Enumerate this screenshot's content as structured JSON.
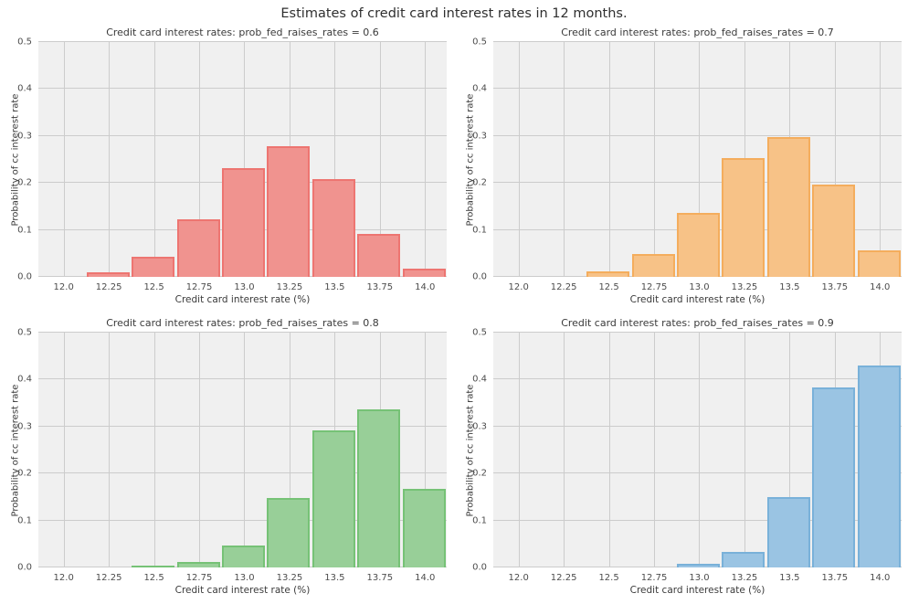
{
  "figure": {
    "title": "Estimates of credit card interest rates in 12 months.",
    "background": "#ffffff"
  },
  "style": {
    "axes_background": "#f0f0f0",
    "grid_color": "#cccccc",
    "title_color": "#2f2f2f",
    "tick_color": "#4d4d4d"
  },
  "chart_data": {
    "type": "bar",
    "subtype": "histogram-grid-2x2",
    "suptitle": "Estimates of credit card interest rates in 12 months.",
    "xlim": [
      11.86,
      14.12
    ],
    "ylim": [
      0,
      0.5
    ],
    "xtick_values": [
      12.0,
      12.25,
      12.5,
      12.75,
      13.0,
      13.25,
      13.5,
      13.75,
      14.0
    ],
    "xtick_labels": [
      "12.0",
      "12.25",
      "12.5",
      "12.75",
      "13.0",
      "13.25",
      "13.5",
      "13.75",
      "14.0"
    ],
    "ytick_values": [
      0.0,
      0.1,
      0.2,
      0.3,
      0.4,
      0.5
    ],
    "ytick_labels": [
      "0.0",
      "0.1",
      "0.2",
      "0.3",
      "0.4",
      "0.5"
    ],
    "grid": true,
    "bin_width": 0.25,
    "bar_width": 0.238,
    "bin_centers": [
      12.245,
      12.495,
      12.745,
      12.995,
      13.245,
      13.495,
      13.745,
      13.995
    ],
    "subplots": [
      {
        "title": "Credit card interest rates: prob_fed_raises_rates = 0.6",
        "xlabel": "Credit card interest rate (%)",
        "ylabel": "Probability of cc interest rate",
        "prob_fed_raises_rates": 0.6,
        "fill": "#f0938f",
        "edge": "#ed7571",
        "values": [
          0.009,
          0.042,
          0.122,
          0.231,
          0.279,
          0.209,
          0.092,
          0.018
        ]
      },
      {
        "title": "Credit card interest rates: prob_fed_raises_rates = 0.7",
        "xlabel": "Credit card interest rate (%)",
        "ylabel": "Probability of cc interest rate",
        "prob_fed_raises_rates": 0.7,
        "fill": "#f7c287",
        "edge": "#f4ad5d",
        "values": [
          0,
          0.012,
          0.048,
          0.137,
          0.253,
          0.297,
          0.197,
          0.057
        ]
      },
      {
        "title": "Credit card interest rates: prob_fed_raises_rates = 0.8",
        "xlabel": "Credit card interest rate (%)",
        "ylabel": "Probability of cc interest rate",
        "prob_fed_raises_rates": 0.8,
        "fill": "#98cf98",
        "edge": "#76c276",
        "values": [
          0,
          0.004,
          0.011,
          0.046,
          0.148,
          0.292,
          0.336,
          0.167
        ]
      },
      {
        "title": "Credit card interest rates: prob_fed_raises_rates = 0.9",
        "xlabel": "Credit card interest rate (%)",
        "ylabel": "Probability of cc interest rate",
        "prob_fed_raises_rates": 0.9,
        "fill": "#9ac4e3",
        "edge": "#79b1d9",
        "values": [
          0,
          0,
          0,
          0.007,
          0.034,
          0.149,
          0.383,
          0.43
        ]
      }
    ],
    "layout": {
      "axes_lefts": [
        42,
        540
      ],
      "axes_tops": [
        46,
        364
      ],
      "axes_width": 447,
      "axes_height": 257
    }
  }
}
